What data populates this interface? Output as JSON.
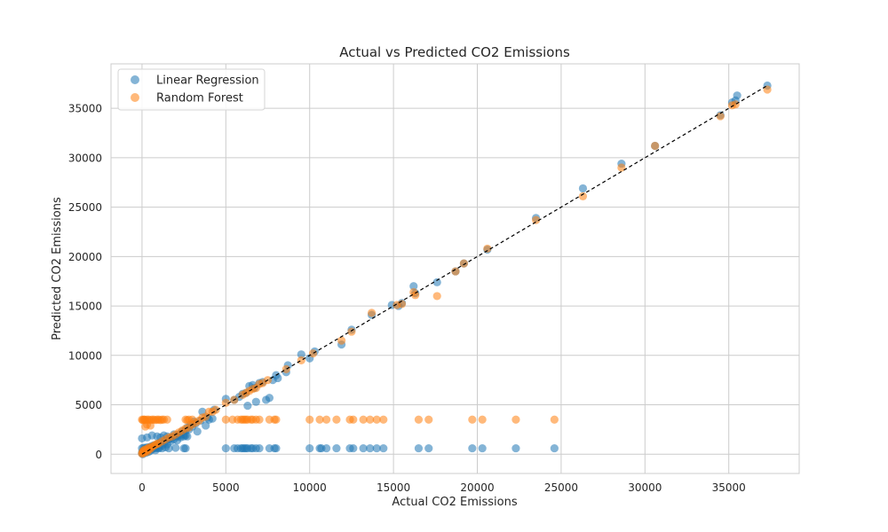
{
  "chart_data": {
    "type": "scatter",
    "title": "Actual vs Predicted CO2 Emissions",
    "xlabel": "Actual CO2 Emissions",
    "ylabel": "Predicted CO2 Emissions",
    "xlim": [
      -1850,
      39200
    ],
    "ylim": [
      -1950,
      39500
    ],
    "x_ticks": [
      0,
      5000,
      10000,
      15000,
      20000,
      25000,
      30000,
      35000
    ],
    "y_ticks": [
      0,
      5000,
      10000,
      15000,
      20000,
      25000,
      30000,
      35000
    ],
    "x_tick_labels": [
      "0",
      "5000",
      "10000",
      "15000",
      "20000",
      "25000",
      "30000",
      "35000"
    ],
    "y_tick_labels": [
      "0",
      "5000",
      "10000",
      "15000",
      "20000",
      "25000",
      "30000",
      "35000"
    ],
    "grid": true,
    "legend_position": "top-left",
    "reference_line": {
      "style": "dashed",
      "color": "#000000",
      "from": [
        0,
        0
      ],
      "to": [
        37300,
        37300
      ]
    },
    "series": [
      {
        "name": "Linear Regression",
        "color": "#1f77b4",
        "points": [
          [
            0,
            100
          ],
          [
            20,
            250
          ],
          [
            50,
            0
          ],
          [
            80,
            350
          ],
          [
            120,
            200
          ],
          [
            150,
            500
          ],
          [
            200,
            300
          ],
          [
            250,
            150
          ],
          [
            300,
            450
          ],
          [
            350,
            600
          ],
          [
            400,
            250
          ],
          [
            450,
            700
          ],
          [
            500,
            350
          ],
          [
            550,
            800
          ],
          [
            600,
            500
          ],
          [
            700,
            900
          ],
          [
            750,
            650
          ],
          [
            800,
            400
          ],
          [
            900,
            1000
          ],
          [
            950,
            750
          ],
          [
            1000,
            600
          ],
          [
            1100,
            1200
          ],
          [
            1200,
            900
          ],
          [
            1300,
            1100
          ],
          [
            1400,
            1350
          ],
          [
            1500,
            1000
          ],
          [
            1600,
            1500
          ],
          [
            1700,
            1300
          ],
          [
            1800,
            1700
          ],
          [
            1900,
            1500
          ],
          [
            2000,
            1800
          ],
          [
            2100,
            1400
          ],
          [
            2200,
            2000
          ],
          [
            2300,
            1700
          ],
          [
            2400,
            2300
          ],
          [
            2500,
            2000
          ],
          [
            2600,
            2400
          ],
          [
            2700,
            2700
          ],
          [
            2800,
            2500
          ],
          [
            2900,
            3000
          ],
          [
            3000,
            2800
          ],
          [
            3100,
            3300
          ],
          [
            3200,
            3100
          ],
          [
            3300,
            2300
          ],
          [
            3500,
            3400
          ],
          [
            3600,
            4300
          ],
          [
            3800,
            2900
          ],
          [
            3900,
            3700
          ],
          [
            4000,
            3500
          ],
          [
            4200,
            3600
          ],
          [
            4300,
            4500
          ],
          [
            5000,
            5600
          ],
          [
            5500,
            5500
          ],
          [
            5800,
            5800
          ],
          [
            6000,
            6100
          ],
          [
            6200,
            6200
          ],
          [
            6300,
            4900
          ],
          [
            6400,
            6900
          ],
          [
            6600,
            7000
          ],
          [
            6700,
            6700
          ],
          [
            6800,
            5300
          ],
          [
            7000,
            7200
          ],
          [
            7200,
            7300
          ],
          [
            7400,
            5500
          ],
          [
            7600,
            5700
          ],
          [
            7800,
            7500
          ],
          [
            8000,
            8000
          ],
          [
            8100,
            7700
          ],
          [
            8600,
            8300
          ],
          [
            8700,
            9000
          ],
          [
            9500,
            10100
          ],
          [
            10000,
            9700
          ],
          [
            10300,
            10400
          ],
          [
            11900,
            11100
          ],
          [
            12500,
            12600
          ],
          [
            13700,
            14100
          ],
          [
            14900,
            15100
          ],
          [
            15300,
            15000
          ],
          [
            15500,
            15300
          ],
          [
            16200,
            17000
          ],
          [
            16300,
            16300
          ],
          [
            17600,
            17400
          ],
          [
            18700,
            18500
          ],
          [
            19200,
            19300
          ],
          [
            20600,
            20700
          ],
          [
            23500,
            23900
          ],
          [
            26300,
            26900
          ],
          [
            28600,
            29400
          ],
          [
            30600,
            31200
          ],
          [
            34500,
            34300
          ],
          [
            35200,
            35600
          ],
          [
            35400,
            35800
          ],
          [
            35500,
            36300
          ],
          [
            37300,
            37300
          ],
          [
            0,
            600
          ],
          [
            100,
            650
          ],
          [
            200,
            600
          ],
          [
            300,
            700
          ],
          [
            400,
            550
          ],
          [
            500,
            600
          ],
          [
            600,
            650
          ],
          [
            800,
            600
          ],
          [
            1000,
            650
          ],
          [
            1200,
            600
          ],
          [
            1400,
            700
          ],
          [
            1600,
            600
          ],
          [
            2000,
            650
          ],
          [
            2500,
            600
          ],
          [
            2600,
            600
          ],
          [
            5000,
            600
          ],
          [
            5500,
            600
          ],
          [
            5700,
            600
          ],
          [
            5900,
            600
          ],
          [
            6000,
            600
          ],
          [
            6100,
            600
          ],
          [
            6200,
            600
          ],
          [
            6300,
            600
          ],
          [
            6500,
            600
          ],
          [
            6600,
            600
          ],
          [
            6800,
            600
          ],
          [
            7000,
            600
          ],
          [
            7600,
            600
          ],
          [
            7900,
            600
          ],
          [
            8000,
            600
          ],
          [
            10000,
            600
          ],
          [
            10600,
            600
          ],
          [
            10700,
            600
          ],
          [
            11000,
            600
          ],
          [
            11600,
            600
          ],
          [
            12400,
            600
          ],
          [
            12600,
            600
          ],
          [
            13200,
            600
          ],
          [
            13600,
            600
          ],
          [
            14000,
            600
          ],
          [
            14400,
            600
          ],
          [
            16500,
            600
          ],
          [
            17100,
            600
          ],
          [
            19700,
            600
          ],
          [
            20300,
            600
          ],
          [
            22300,
            600
          ],
          [
            24600,
            600
          ],
          [
            0,
            1600
          ],
          [
            300,
            1700
          ],
          [
            600,
            1900
          ],
          [
            900,
            1800
          ],
          [
            1100,
            1700
          ],
          [
            1300,
            1900
          ],
          [
            1500,
            1800
          ],
          [
            1700,
            1600
          ],
          [
            1900,
            2000
          ],
          [
            2100,
            1800
          ],
          [
            2300,
            1900
          ],
          [
            2500,
            1800
          ],
          [
            2600,
            1900
          ],
          [
            2700,
            1800
          ]
        ]
      },
      {
        "name": "Random Forest",
        "color": "#ff7f0e",
        "points": [
          [
            0,
            50
          ],
          [
            20,
            150
          ],
          [
            50,
            300
          ],
          [
            80,
            100
          ],
          [
            120,
            400
          ],
          [
            150,
            200
          ],
          [
            200,
            500
          ],
          [
            250,
            350
          ],
          [
            300,
            250
          ],
          [
            350,
            600
          ],
          [
            400,
            450
          ],
          [
            450,
            700
          ],
          [
            500,
            550
          ],
          [
            600,
            750
          ],
          [
            700,
            850
          ],
          [
            800,
            950
          ],
          [
            900,
            1050
          ],
          [
            1000,
            1100
          ],
          [
            1200,
            1300
          ],
          [
            1400,
            1500
          ],
          [
            1600,
            1700
          ],
          [
            1800,
            1800
          ],
          [
            2000,
            2000
          ],
          [
            2200,
            2200
          ],
          [
            2400,
            2400
          ],
          [
            2600,
            2600
          ],
          [
            2800,
            2700
          ],
          [
            3000,
            3000
          ],
          [
            3200,
            3200
          ],
          [
            3400,
            3400
          ],
          [
            3600,
            3700
          ],
          [
            3800,
            3800
          ],
          [
            4000,
            4300
          ],
          [
            4200,
            4300
          ],
          [
            4400,
            4500
          ],
          [
            5000,
            5200
          ],
          [
            5500,
            5500
          ],
          [
            6000,
            6000
          ],
          [
            6200,
            6200
          ],
          [
            6400,
            6400
          ],
          [
            6600,
            6600
          ],
          [
            6800,
            6700
          ],
          [
            7000,
            7100
          ],
          [
            7200,
            7200
          ],
          [
            7500,
            7500
          ],
          [
            8600,
            8600
          ],
          [
            9500,
            9500
          ],
          [
            10200,
            10200
          ],
          [
            11900,
            11500
          ],
          [
            12500,
            12400
          ],
          [
            13700,
            14300
          ],
          [
            15200,
            15100
          ],
          [
            15500,
            15200
          ],
          [
            16200,
            16400
          ],
          [
            16300,
            16100
          ],
          [
            17600,
            16000
          ],
          [
            18700,
            18500
          ],
          [
            19200,
            19300
          ],
          [
            20600,
            20800
          ],
          [
            23500,
            23700
          ],
          [
            26300,
            26100
          ],
          [
            28600,
            29000
          ],
          [
            30600,
            31200
          ],
          [
            34500,
            34200
          ],
          [
            35200,
            35300
          ],
          [
            35400,
            35400
          ],
          [
            37300,
            36900
          ],
          [
            0,
            3500
          ],
          [
            50,
            3450
          ],
          [
            100,
            3500
          ],
          [
            150,
            3500
          ],
          [
            200,
            3450
          ],
          [
            300,
            3500
          ],
          [
            400,
            3500
          ],
          [
            500,
            3450
          ],
          [
            600,
            3500
          ],
          [
            700,
            3500
          ],
          [
            800,
            3450
          ],
          [
            900,
            3500
          ],
          [
            1000,
            3500
          ],
          [
            1100,
            3450
          ],
          [
            1200,
            3500
          ],
          [
            1300,
            3500
          ],
          [
            1500,
            3500
          ],
          [
            2600,
            3500
          ],
          [
            2700,
            3450
          ],
          [
            2800,
            3500
          ],
          [
            3000,
            3500
          ],
          [
            5000,
            3500
          ],
          [
            5400,
            3500
          ],
          [
            5700,
            3500
          ],
          [
            5900,
            3500
          ],
          [
            6000,
            3500
          ],
          [
            6100,
            3500
          ],
          [
            6200,
            3500
          ],
          [
            6300,
            3500
          ],
          [
            6500,
            3500
          ],
          [
            6600,
            3500
          ],
          [
            6800,
            3500
          ],
          [
            7000,
            3500
          ],
          [
            7600,
            3500
          ],
          [
            7900,
            3500
          ],
          [
            8000,
            3500
          ],
          [
            10000,
            3500
          ],
          [
            10600,
            3500
          ],
          [
            11000,
            3500
          ],
          [
            11600,
            3500
          ],
          [
            12400,
            3500
          ],
          [
            12600,
            3500
          ],
          [
            13200,
            3500
          ],
          [
            13600,
            3500
          ],
          [
            14000,
            3500
          ],
          [
            14400,
            3500
          ],
          [
            16500,
            3500
          ],
          [
            17100,
            3500
          ],
          [
            19700,
            3500
          ],
          [
            20300,
            3500
          ],
          [
            22300,
            3500
          ],
          [
            24600,
            3500
          ],
          [
            200,
            2800
          ],
          [
            300,
            3000
          ],
          [
            500,
            2900
          ]
        ]
      }
    ]
  }
}
